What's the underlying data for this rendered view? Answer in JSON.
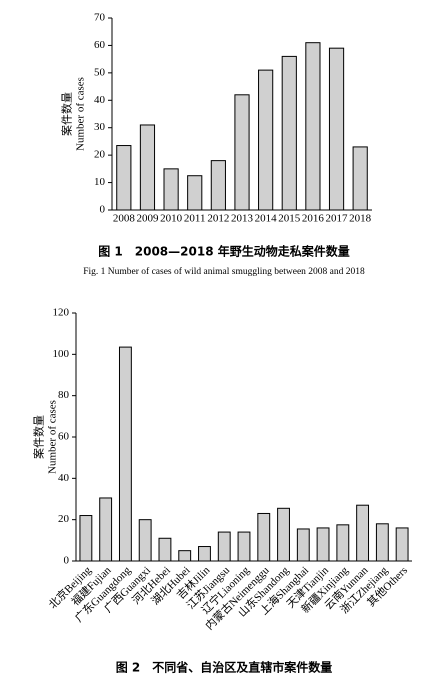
{
  "chart_data": [
    {
      "type": "bar",
      "title": "图 1　2008—2018 年野生动物走私案件数量",
      "subtitle": "Fig. 1 Number of cases of wild animal smuggling between 2008 and 2018",
      "y_label": [
        "案件数量",
        "Number of cases"
      ],
      "categories": [
        "2008",
        "2009",
        "2010",
        "2011",
        "2012",
        "2013",
        "2014",
        "2015",
        "2016",
        "2017",
        "2018"
      ],
      "values": [
        23.5,
        31,
        15,
        12.5,
        18,
        42,
        51,
        56,
        61,
        59,
        23
      ],
      "color": "#d0d0d0",
      "ylim": [
        0,
        70
      ],
      "yticks": [
        0,
        10,
        20,
        30,
        40,
        50,
        60,
        70
      ]
    },
    {
      "type": "bar",
      "title": "图 2　不同省、自治区及直辖市案件数量",
      "y_label": [
        "案件数量",
        "Number of cases"
      ],
      "categories": [
        "北京Beijing",
        "福建Fujian",
        "广东Guangdong",
        "广西Guangxi",
        "河北Hebei",
        "湖北Hubei",
        "吉林Jilin",
        "江苏Jiangsu",
        "辽宁Liaoning",
        "内蒙古Neimenggu",
        "山东Shandong",
        "上海Shanghai",
        "天津Tianjin",
        "新疆Xinjiang",
        "云南Yunnan",
        "浙江Zhejiang",
        "其他Others"
      ],
      "values": [
        22,
        30.5,
        103.5,
        20,
        11,
        5,
        7,
        14,
        14,
        23,
        25.5,
        15.5,
        16,
        17.5,
        27,
        18,
        16
      ],
      "color": "#d0d0d0",
      "ylim": [
        0,
        120
      ],
      "yticks": [
        0,
        20,
        40,
        60,
        80,
        100,
        120
      ]
    }
  ]
}
